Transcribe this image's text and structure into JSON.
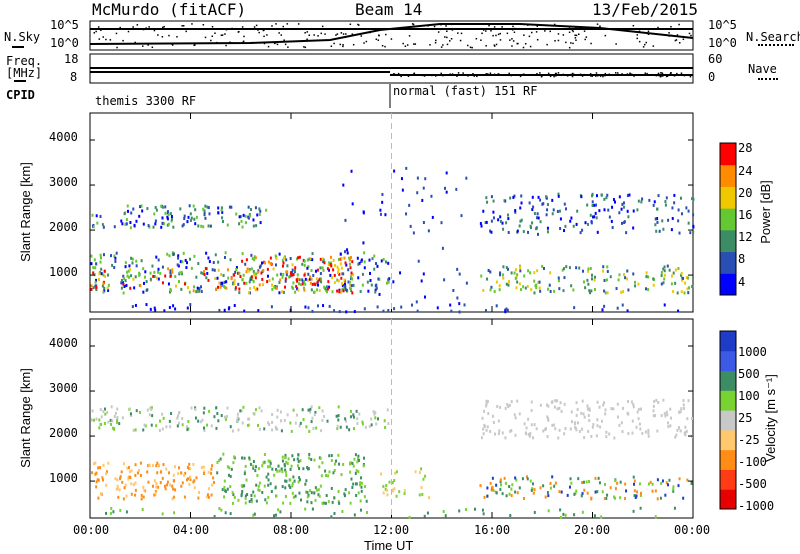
{
  "header": {
    "station": "McMurdo (fitACF)",
    "beam": "Beam 14",
    "date": "13/Feb/2015"
  },
  "top_panels": {
    "nsky_label": "N.Sky",
    "nsearch_label": "N.Search",
    "freq_label_1": "Freq.",
    "freq_label_2": "[MHz]",
    "nave_label": "Nave",
    "cpid_label": "CPID",
    "left_ticks_a": [
      "10^5",
      "10^0"
    ],
    "left_ticks_b": [
      "18",
      "8"
    ],
    "right_ticks_a": [
      "10^5",
      "10^0"
    ],
    "right_ticks_b": [
      "60",
      "0"
    ],
    "cpid_segments": [
      {
        "label": "themis 3300 RF",
        "start_hour": 0
      },
      {
        "label": "normal (fast) 151 RF",
        "start_hour": 12
      }
    ]
  },
  "chart_data": [
    {
      "type": "heatmap",
      "panel": "power",
      "ylabel": "Slant Range [km]",
      "xlabel": "",
      "xlim": [
        0,
        24
      ],
      "ylim": [
        180,
        4600
      ],
      "yticks": [
        "1000",
        "2000",
        "3000",
        "4000"
      ],
      "colorbar": {
        "label": "Power [dB]",
        "ticks": [
          "4",
          "8",
          "12",
          "16",
          "20",
          "24",
          "28"
        ],
        "colors": [
          "#0000ff",
          "#2a4fb4",
          "#3c8c64",
          "#64c832",
          "#f0c800",
          "#ff8c00",
          "#ff0000"
        ]
      }
    },
    {
      "type": "heatmap",
      "panel": "velocity",
      "ylabel": "Slant Range [km]",
      "xlabel": "Time UT",
      "xlim": [
        0,
        24
      ],
      "ylim": [
        180,
        4600
      ],
      "yticks": [
        "1000",
        "2000",
        "3000",
        "4000"
      ],
      "xticks": [
        "00:00",
        "04:00",
        "08:00",
        "12:00",
        "16:00",
        "20:00",
        "00:00"
      ],
      "colorbar": {
        "label": "Velocity [m s⁻¹]",
        "ticks": [
          "1000",
          "500",
          "100",
          "25",
          "-25",
          "-100",
          "-500",
          "-1000"
        ],
        "colors": [
          "#1e3cc8",
          "#3c5ae6",
          "#3c8c64",
          "#78d232",
          "#c8c8c8",
          "#ffc86e",
          "#ff8c14",
          "#ff3c14",
          "#e60000"
        ]
      }
    }
  ]
}
